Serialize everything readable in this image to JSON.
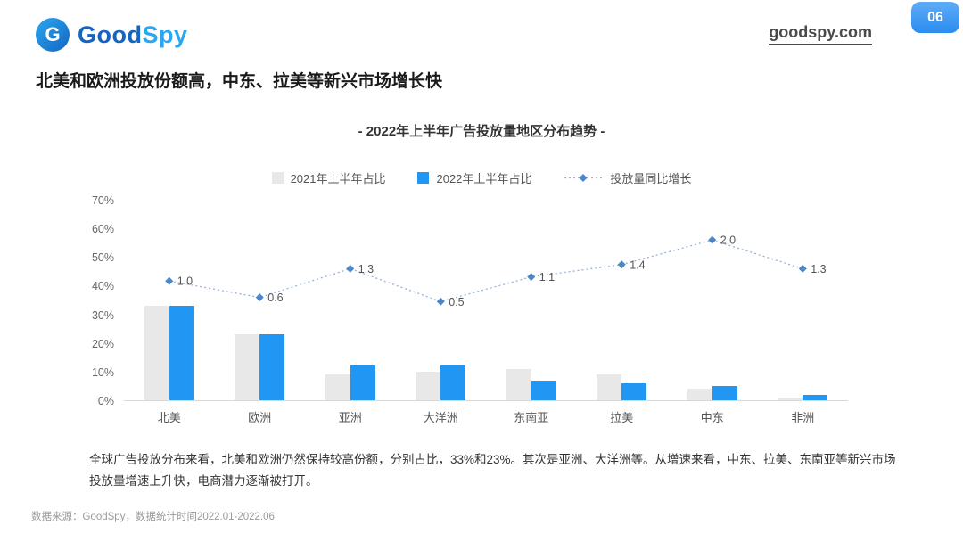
{
  "page": {
    "badge": "06",
    "logo": {
      "monogram": "G",
      "text_primary": "Good",
      "text_secondary": "Spy"
    },
    "site_link": "goodspy.com",
    "title": "北美和欧洲投放份额高，中东、拉美等新兴市场增长快",
    "description": "全球广告投放分布来看，北美和欧洲仍然保持较高份额，分别占比，33%和23%。其次是亚洲、大洋洲等。从增速来看，中东、拉美、东南亚等新兴市场投放量增速上升快，电商潜力逐渐被打开。",
    "footer": "数据来源：GoodSpy，数据统计时间2022.01-2022.06"
  },
  "colors": {
    "brand-dark": "#1565c0",
    "brand-light": "#2aa7f0",
    "accent-blue": "#2196f3",
    "bar-gray": "#e8e8e8",
    "badge-start": "#5facf7",
    "badge-end": "#2b8cf0"
  },
  "chart_data": {
    "type": "bar",
    "title": "- 2022年上半年广告投放量地区分布趋势 -",
    "categories": [
      "北美",
      "欧洲",
      "亚洲",
      "大洋洲",
      "东南亚",
      "拉美",
      "中东",
      "非洲"
    ],
    "series": [
      {
        "name": "2021年上半年占比",
        "kind": "bar",
        "color": "#e8e8e8",
        "values": [
          33,
          23,
          9,
          10,
          11,
          9,
          4,
          1
        ]
      },
      {
        "name": "2022年上半年占比",
        "kind": "bar",
        "color": "#2196f3",
        "values": [
          33,
          23,
          12,
          12,
          7,
          6,
          5,
          2
        ]
      },
      {
        "name": "投放量同比增长",
        "kind": "line",
        "color": "#97b3d8",
        "marker_color": "#4b87c9",
        "values": [
          1.0,
          0.6,
          1.3,
          0.5,
          1.1,
          1.4,
          2.0,
          1.3
        ]
      }
    ],
    "y_ticks": [
      "70%",
      "60%",
      "50%",
      "40%",
      "30%",
      "20%",
      "10%",
      "0%"
    ],
    "ylim": [
      0,
      70
    ],
    "grid": false,
    "legend_position": "top"
  }
}
